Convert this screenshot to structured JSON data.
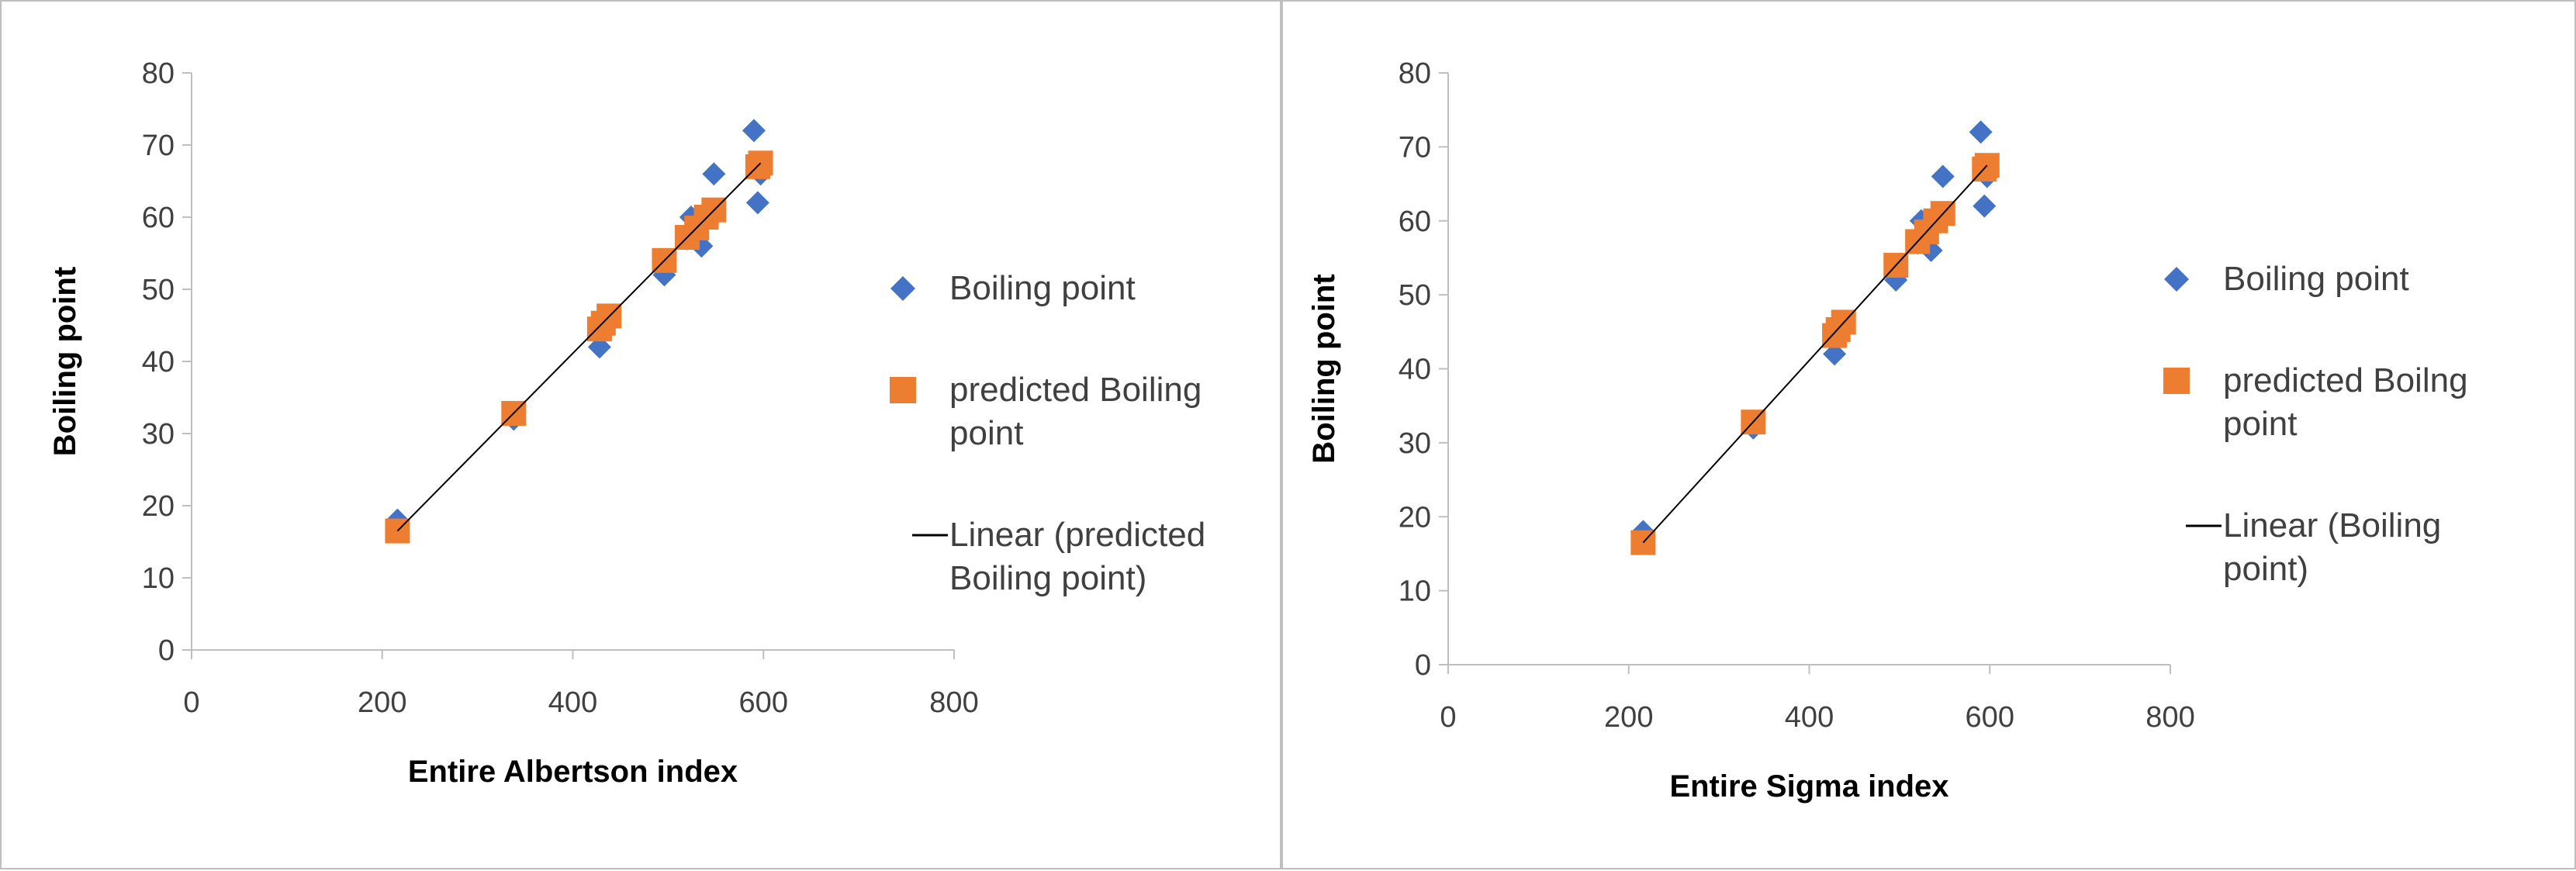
{
  "colors": {
    "actual": "#4472C4",
    "predicted": "#ED7D31",
    "fit": "#000000",
    "axis": "#bfbfbf",
    "text": "#404040"
  },
  "chart_data": [
    {
      "type": "scatter",
      "title": "",
      "xlabel": "Entire Albertson index",
      "ylabel": "Boiling point",
      "xlim": [
        0,
        800
      ],
      "ylim": [
        0,
        80
      ],
      "xticks": [
        0,
        200,
        400,
        600,
        800
      ],
      "yticks": [
        0,
        10,
        20,
        30,
        40,
        50,
        60,
        70,
        80
      ],
      "grid": false,
      "legend_position": "right",
      "series": [
        {
          "name": "Boiling point",
          "marker": "diamond",
          "x": [
            216,
            338,
            428,
            430,
            436,
            496,
            520,
            524,
            535,
            540,
            548,
            590,
            594,
            597
          ],
          "y": [
            18,
            32,
            42,
            45,
            46,
            52,
            57,
            60,
            56,
            60,
            66,
            72,
            62,
            66
          ]
        },
        {
          "name": "predicted Boiling point",
          "marker": "square",
          "x": [
            216,
            338,
            428,
            432,
            438,
            496,
            520,
            530,
            540,
            548,
            594,
            597
          ],
          "y": [
            16.5,
            32.8,
            44.5,
            45.3,
            46.3,
            54,
            57.2,
            58.5,
            60,
            61,
            67,
            67.5
          ]
        },
        {
          "name": "Linear (predicted Boiling point)",
          "type": "trendline",
          "x": [
            216,
            597
          ],
          "y": [
            16.5,
            67.5
          ]
        }
      ]
    },
    {
      "type": "scatter",
      "title": "",
      "xlabel": "Entire Sigma index",
      "ylabel": "Boiling point",
      "xlim": [
        0,
        800
      ],
      "ylim": [
        0,
        80
      ],
      "xticks": [
        0,
        200,
        400,
        600,
        800
      ],
      "yticks": [
        0,
        10,
        20,
        30,
        40,
        50,
        60,
        70,
        80
      ],
      "grid": false,
      "legend_position": "right",
      "series": [
        {
          "name": "Boiling point",
          "marker": "diamond",
          "x": [
            216,
            338,
            428,
            430,
            436,
            496,
            520,
            524,
            535,
            540,
            548,
            590,
            594,
            597
          ],
          "y": [
            18,
            32,
            42,
            45,
            46,
            52,
            57,
            60,
            56,
            60,
            66,
            72,
            62,
            66
          ]
        },
        {
          "name": "predicted Boilng point",
          "marker": "square",
          "x": [
            216,
            338,
            428,
            432,
            438,
            496,
            520,
            530,
            540,
            548,
            594,
            597
          ],
          "y": [
            16.5,
            32.8,
            44.5,
            45.3,
            46.3,
            54,
            57.2,
            58.5,
            60,
            61,
            67,
            67.5
          ]
        },
        {
          "name": "Linear (Boiling point)",
          "type": "trendline",
          "x": [
            216,
            597
          ],
          "y": [
            16.5,
            67.5
          ]
        }
      ]
    }
  ]
}
